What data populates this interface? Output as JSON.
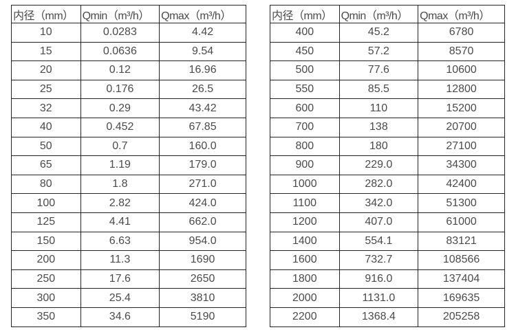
{
  "colors": {
    "border": "#222222",
    "text": "#4a4a4a",
    "background": "#ffffff"
  },
  "tables": [
    {
      "name": "flow-table-small-diameters",
      "headers": [
        "内径（mm）",
        "Qmin（m³/h）",
        "Qmax（m³/h）"
      ],
      "rows": [
        [
          "10",
          "0.0283",
          "4.42"
        ],
        [
          "15",
          "0.0636",
          "9.54"
        ],
        [
          "20",
          "0.12",
          "16.96"
        ],
        [
          "25",
          "0.176",
          "26.5"
        ],
        [
          "32",
          "0.29",
          "43.42"
        ],
        [
          "40",
          "0.452",
          "67.85"
        ],
        [
          "50",
          "0.7",
          "160.0"
        ],
        [
          "65",
          "1.19",
          "179.0"
        ],
        [
          "80",
          "1.8",
          "271.0"
        ],
        [
          "100",
          "2.82",
          "424.0"
        ],
        [
          "125",
          "4.41",
          "662.0"
        ],
        [
          "150",
          "6.63",
          "954.0"
        ],
        [
          "200",
          "11.3",
          "1690"
        ],
        [
          "250",
          "17.6",
          "2650"
        ],
        [
          "300",
          "25.4",
          "3810"
        ],
        [
          "350",
          "34.6",
          "5190"
        ]
      ]
    },
    {
      "name": "flow-table-large-diameters",
      "headers": [
        "内径（mm）",
        "Qmin（m³/h）",
        "Qmax（m³/h）"
      ],
      "rows": [
        [
          "400",
          "45.2",
          "6780"
        ],
        [
          "450",
          "57.2",
          "8570"
        ],
        [
          "500",
          "77.6",
          "10600"
        ],
        [
          "550",
          "85.5",
          "12800"
        ],
        [
          "600",
          "110",
          "15200"
        ],
        [
          "700",
          "138",
          "20700"
        ],
        [
          "800",
          "180",
          "27100"
        ],
        [
          "900",
          "229.0",
          "34300"
        ],
        [
          "1000",
          "282.0",
          "42400"
        ],
        [
          "1100",
          "342.0",
          "51300"
        ],
        [
          "1200",
          "407.0",
          "61000"
        ],
        [
          "1400",
          "554.1",
          "83121"
        ],
        [
          "1600",
          "732.7",
          "108566"
        ],
        [
          "1800",
          "916.0",
          "137404"
        ],
        [
          "2000",
          "1131.0",
          "169635"
        ],
        [
          "2200",
          "1368.4",
          "205258"
        ]
      ]
    }
  ]
}
